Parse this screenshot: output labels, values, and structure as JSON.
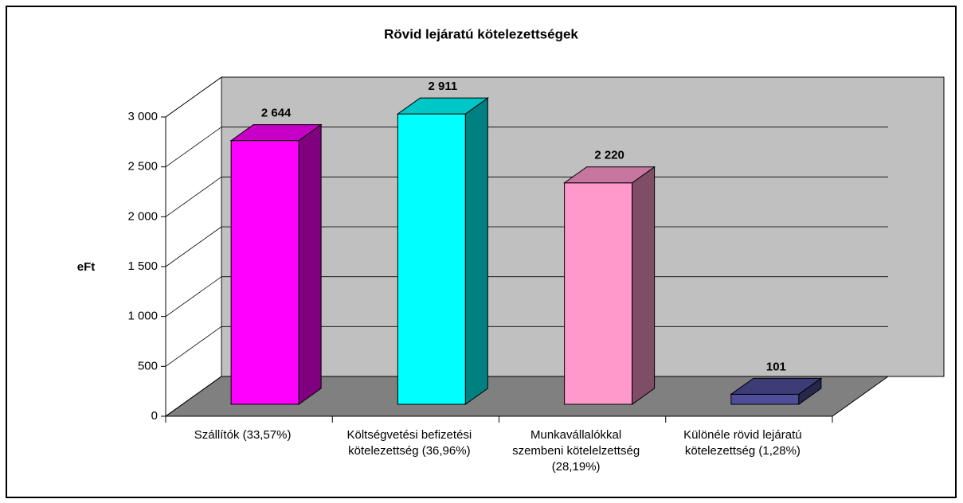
{
  "chart_data": {
    "type": "bar3d",
    "title": "Rövid lejáratú kötelezettségek",
    "ylabel": "eFt",
    "categories": [
      "Szállítók (33,57%)",
      "Költségvetési befizetési kötelezettség (36,96%)",
      "Munkavállalókkal szembeni kötelelzettség (28,19%)",
      "Különéle rövid lejáratú kötelezettség (1,28%)"
    ],
    "values": [
      2644,
      2911,
      2220,
      101
    ],
    "value_labels": [
      "2 644",
      "2 911",
      "2 220",
      "101"
    ],
    "colors": [
      "#ff00ff",
      "#00ffff",
      "#ff99cc",
      "#4d4d99"
    ],
    "ylim": [
      0,
      3000
    ],
    "yticks": [
      0,
      500,
      {
        "value": 1000,
        "label": "1 000"
      },
      {
        "value": 1500,
        "label": "1 500"
      },
      {
        "value": 2000,
        "label": "2 000"
      },
      {
        "value": 2500,
        "label": "2 500"
      },
      {
        "value": 3000,
        "label": "3 000"
      }
    ],
    "grid": true
  }
}
